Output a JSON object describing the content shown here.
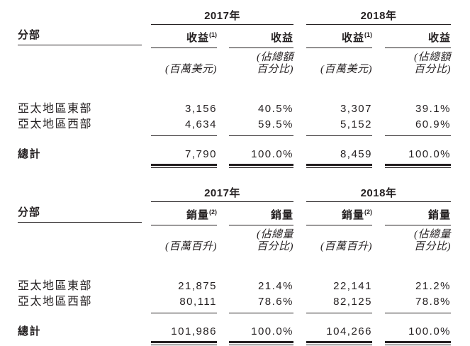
{
  "meta": {
    "background": "#ffffff",
    "ink_color": "#231f20",
    "language": "zh-Hant"
  },
  "tables": [
    {
      "name": "revenue-by-segment",
      "years": [
        "2017年",
        "2018年"
      ],
      "segment_header": "分部",
      "columns": [
        {
          "label": "收益",
          "sup": "(1)",
          "note_lines": [
            "(百萬美元)"
          ]
        },
        {
          "label": "收益",
          "sup": "",
          "note_lines": [
            "(佔總額",
            "百分比)"
          ]
        },
        {
          "label": "收益",
          "sup": "(1)",
          "note_lines": [
            "(百萬美元)"
          ]
        },
        {
          "label": "收益",
          "sup": "",
          "note_lines": [
            "(佔總額",
            "百分比)"
          ]
        }
      ],
      "rows": [
        {
          "label": "亞太地區東部",
          "values": [
            "3,156",
            "40.5%",
            "3,307",
            "39.1%"
          ]
        },
        {
          "label": "亞太地區西部",
          "values": [
            "4,634",
            "59.5%",
            "5,152",
            "60.9%"
          ]
        }
      ],
      "total": {
        "label": "總計",
        "values": [
          "7,790",
          "100.0%",
          "8,459",
          "100.0%"
        ]
      }
    },
    {
      "name": "volume-by-segment",
      "years": [
        "2017年",
        "2018年"
      ],
      "segment_header": "分部",
      "columns": [
        {
          "label": "銷量",
          "sup": "(2)",
          "note_lines": [
            "(百萬百升)"
          ]
        },
        {
          "label": "銷量",
          "sup": "",
          "note_lines": [
            "(佔總量",
            "百分比)"
          ]
        },
        {
          "label": "銷量",
          "sup": "(2)",
          "note_lines": [
            "(百萬百升)"
          ]
        },
        {
          "label": "銷量",
          "sup": "",
          "note_lines": [
            "(佔總量",
            "百分比)"
          ]
        }
      ],
      "rows": [
        {
          "label": "亞太地區東部",
          "values": [
            "21,875",
            "21.4%",
            "22,141",
            "21.2%"
          ]
        },
        {
          "label": "亞太地區西部",
          "values": [
            "80,111",
            "78.6%",
            "82,125",
            "78.8%"
          ]
        }
      ],
      "total": {
        "label": "總計",
        "values": [
          "101,986",
          "100.0%",
          "104,266",
          "100.0%"
        ]
      }
    }
  ]
}
